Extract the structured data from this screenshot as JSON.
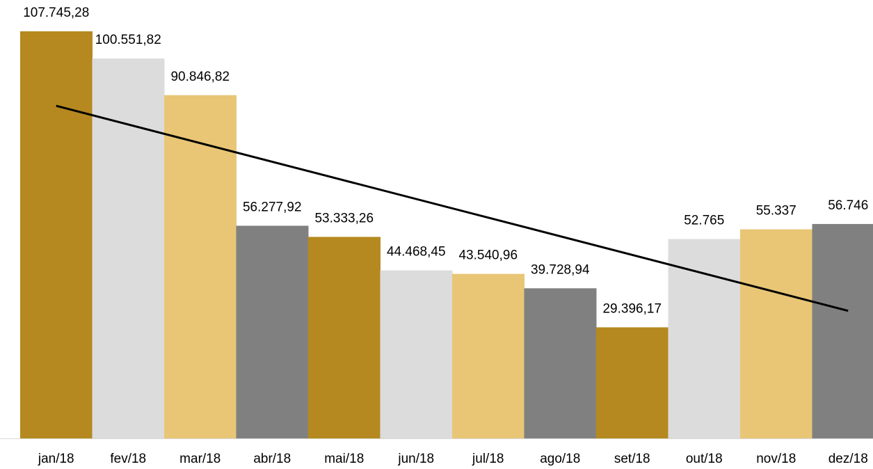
{
  "chart_data": {
    "type": "bar",
    "categories": [
      "jan/18",
      "fev/18",
      "mar/18",
      "abr/18",
      "mai/18",
      "jun/18",
      "jul/18",
      "ago/18",
      "set/18",
      "out/18",
      "nov/18",
      "dez/18"
    ],
    "values": [
      107745.28,
      100551.82,
      90846.82,
      56277.92,
      53333.26,
      44468.45,
      43540.96,
      39728.94,
      29396.17,
      52765,
      55337,
      56746
    ],
    "value_labels": [
      "107.745,28",
      "100.551,82",
      "90.846,82",
      "56.277,92",
      "53.333,26",
      "44.468,45",
      "43.540,96",
      "39.728,94",
      "29.396,17",
      "52.765",
      "55.337",
      "56.746"
    ],
    "colors": [
      "#b5891f",
      "#dcdcdc",
      "#e8c675",
      "#808080",
      "#b5891f",
      "#dcdcdc",
      "#e8c675",
      "#808080",
      "#b5891f",
      "#dcdcdc",
      "#e8c675",
      "#808080"
    ],
    "trendline": "linear",
    "trendline_color": "#000000"
  }
}
